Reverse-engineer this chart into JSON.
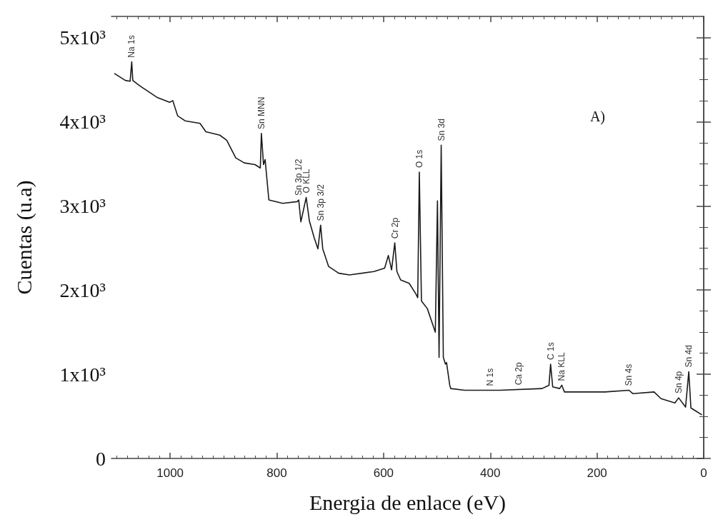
{
  "chart_data": {
    "type": "line",
    "xlabel": "Energia de enlace (eV)",
    "ylabel": "Cuentas (u.a)",
    "xlim": [
      1110,
      0
    ],
    "xticks": [
      1000,
      800,
      600,
      400,
      200,
      0
    ],
    "ylim": [
      0,
      5250
    ],
    "yticks": [
      {
        "value": 0,
        "label": "0"
      },
      {
        "value": 1000,
        "label": "1x10³"
      },
      {
        "value": 2000,
        "label": "2x10³"
      },
      {
        "value": 3000,
        "label": "3x10³"
      },
      {
        "value": 4000,
        "label": "4x10³"
      },
      {
        "value": 5000,
        "label": "5x10³"
      }
    ],
    "marker": "none",
    "line_style": "solid",
    "series": [
      {
        "color": "#1a1a1a",
        "x": [
          1104,
          1084,
          1075,
          1072,
          1070,
          1058,
          1025,
          1001,
          995,
          986,
          972,
          944,
          933,
          907,
          894,
          877,
          861,
          841,
          831,
          829,
          825,
          822,
          815,
          789,
          762,
          759,
          755,
          745,
          739,
          730,
          723,
          718,
          714,
          703,
          684,
          664,
          618,
          598,
          591,
          585,
          579,
          575,
          568,
          552,
          539,
          536,
          533,
          529,
          518,
          503,
          499,
          496,
          492,
          488,
          484,
          482,
          476,
          474,
          448,
          382,
          303,
          290,
          287,
          283,
          270,
          266,
          261,
          185,
          140,
          133,
          93,
          80,
          54,
          47,
          34,
          28,
          24,
          14,
          4
        ],
        "values": [
          4570,
          4490,
          4480,
          4710,
          4490,
          4430,
          4290,
          4230,
          4250,
          4070,
          4010,
          3980,
          3880,
          3840,
          3780,
          3570,
          3510,
          3490,
          3450,
          3860,
          3490,
          3550,
          3070,
          3030,
          3050,
          3070,
          2810,
          3100,
          2820,
          2620,
          2490,
          2770,
          2490,
          2280,
          2200,
          2180,
          2220,
          2260,
          2410,
          2240,
          2560,
          2220,
          2120,
          2080,
          1950,
          1910,
          3400,
          1870,
          1780,
          1500,
          3060,
          1200,
          3720,
          1200,
          1120,
          1140,
          870,
          830,
          810,
          810,
          830,
          870,
          1120,
          850,
          830,
          870,
          790,
          790,
          810,
          770,
          790,
          710,
          660,
          720,
          610,
          1030,
          600,
          560,
          520
        ]
      }
    ],
    "annotations": [
      {
        "text": "Na 1s",
        "x": 1072,
        "y": 4710
      },
      {
        "text": "Sn MNN",
        "x": 829,
        "y": 3860
      },
      {
        "text": "Sn 3p 1/2",
        "x": 759,
        "y": 3070
      },
      {
        "text": "O KLL",
        "x": 745,
        "y": 3100
      },
      {
        "text": "Sn 3p 3/2",
        "x": 718,
        "y": 2770
      },
      {
        "text": "Cr 2p",
        "x": 579,
        "y": 2560
      },
      {
        "text": "O 1s",
        "x": 533,
        "y": 3400
      },
      {
        "text": "Sn 3d",
        "x": 492,
        "y": 3720
      },
      {
        "text": "N 1s",
        "x": 400,
        "y": 810
      },
      {
        "text": "Ca 2p",
        "x": 347,
        "y": 820
      },
      {
        "text": "C 1s",
        "x": 287,
        "y": 1120
      },
      {
        "text": "Na KLL",
        "x": 266,
        "y": 870
      },
      {
        "text": "Sn 4s",
        "x": 140,
        "y": 810
      },
      {
        "text": "Sn 4p",
        "x": 47,
        "y": 720
      },
      {
        "text": "Sn 4d",
        "x": 28,
        "y": 1030
      },
      "A)"
    ]
  }
}
